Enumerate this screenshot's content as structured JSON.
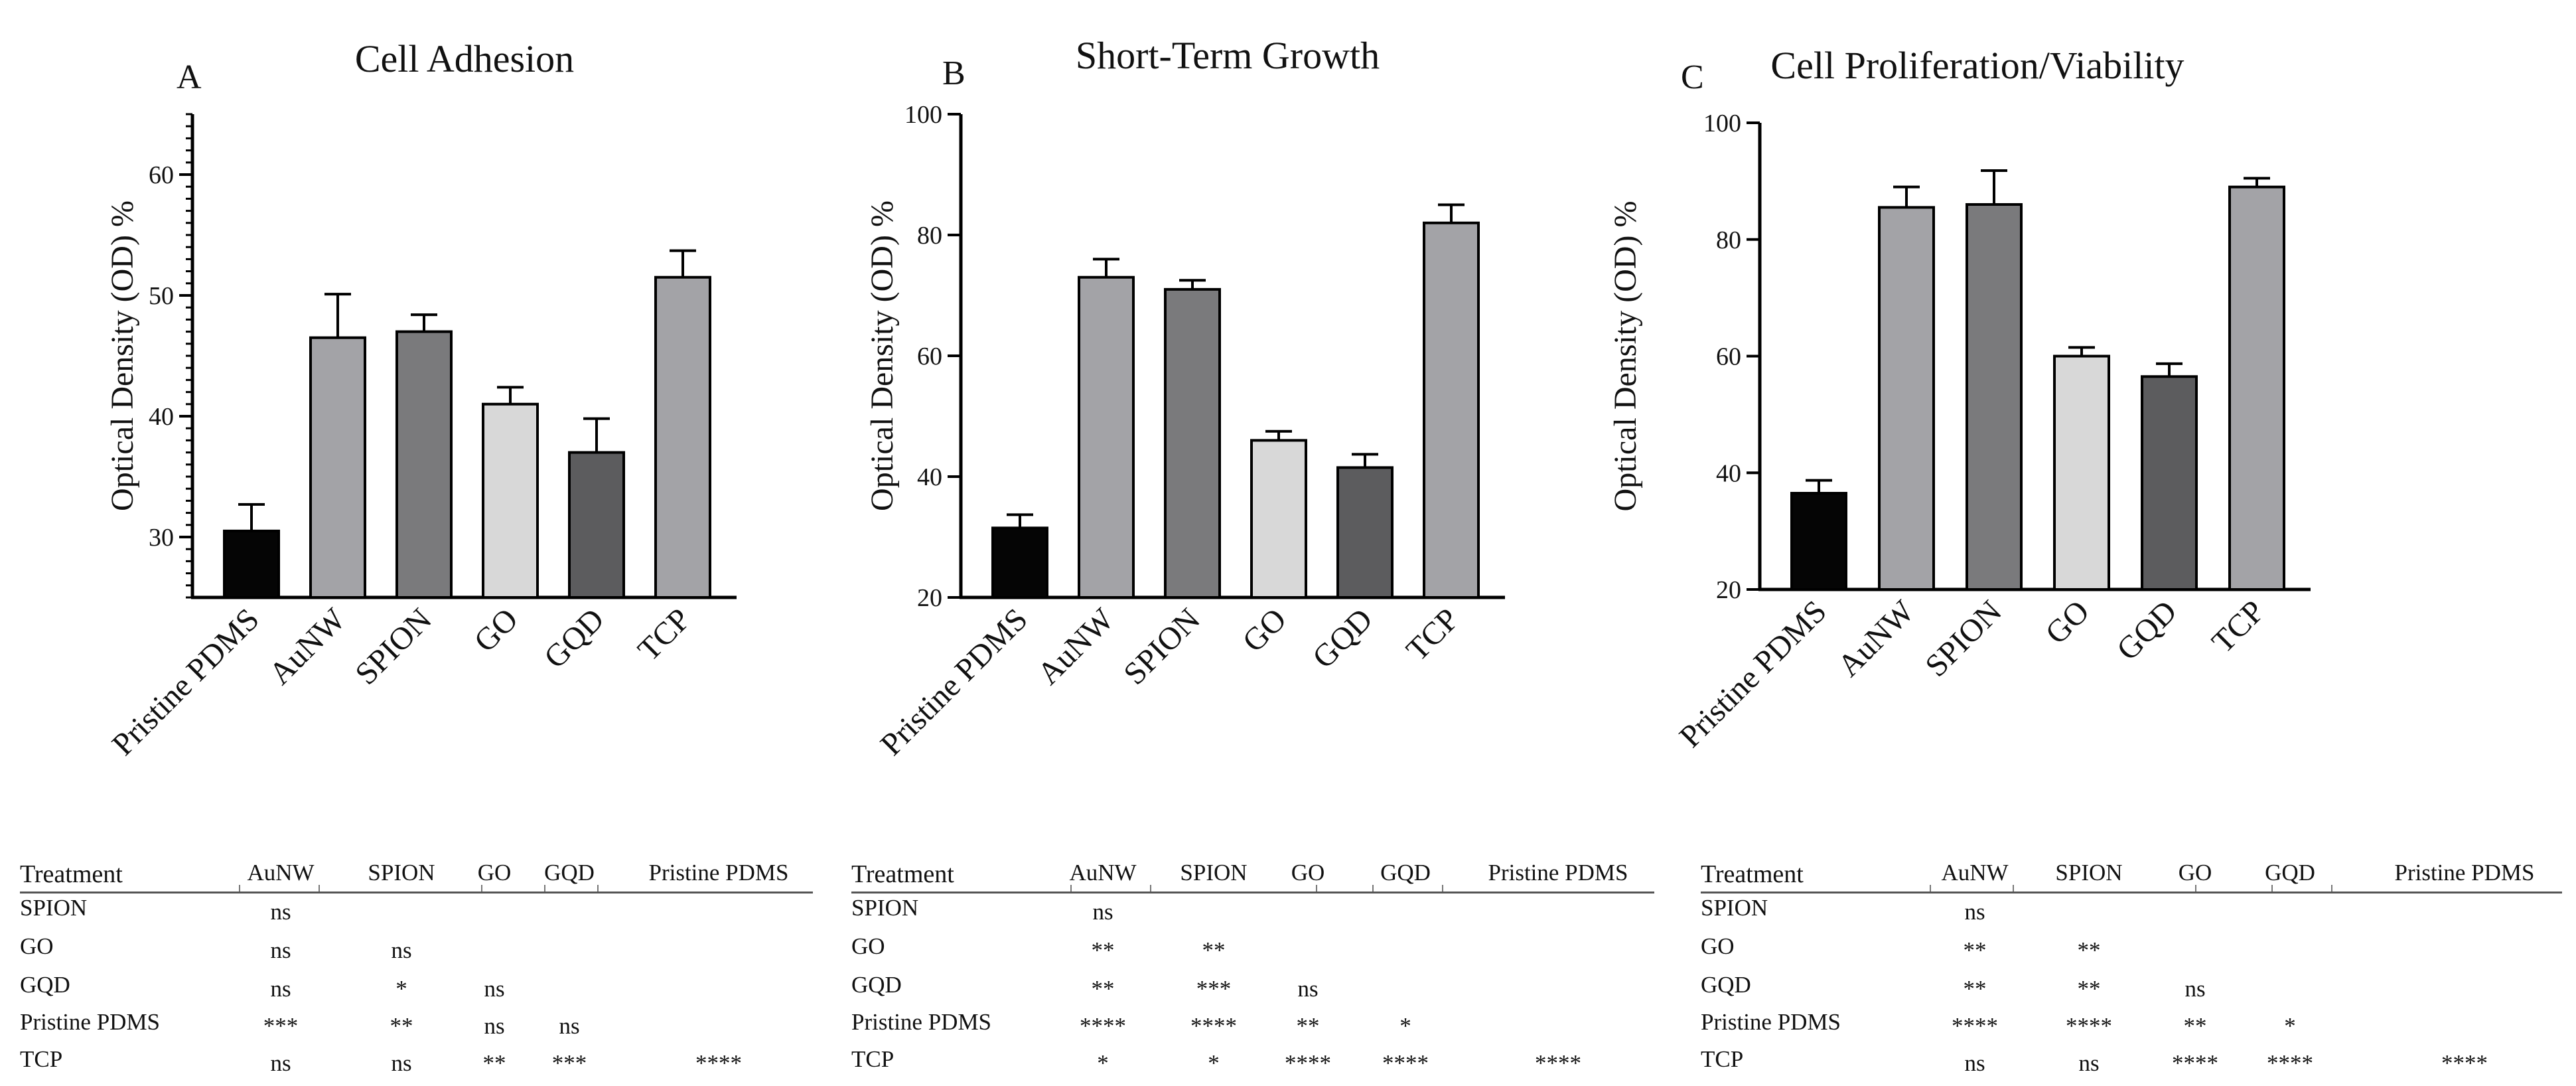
{
  "chart_data": [
    {
      "type": "bar",
      "panel_letter": "A",
      "title": "Cell Adhesion",
      "ylabel": "Optical Density (OD) %",
      "xlabel": "",
      "ylim": [
        25,
        65
      ],
      "yticks": [
        30,
        40,
        50,
        60
      ],
      "grid": false,
      "categories": [
        "Pristine PDMS",
        "AuNW",
        "SPION",
        "GO",
        "GQD",
        "TCP"
      ],
      "values": [
        30.5,
        46.5,
        47.0,
        41.0,
        37.0,
        51.5
      ],
      "errors": [
        2.2,
        3.6,
        1.4,
        1.4,
        2.8,
        2.2
      ],
      "colors": [
        "#050505",
        "#a3a3a7",
        "#7a7a7c",
        "#d8d8d8",
        "#5c5c5e",
        "#a3a3a7"
      ]
    },
    {
      "type": "bar",
      "panel_letter": "B",
      "title": "Short-Term Growth",
      "ylabel": "Optical Density (OD) %",
      "xlabel": "",
      "ylim": [
        20,
        100
      ],
      "yticks": [
        20,
        40,
        60,
        80,
        100
      ],
      "grid": false,
      "categories": [
        "Pristine PDMS",
        "AuNW",
        "SPION",
        "GO",
        "GQD",
        "TCP"
      ],
      "values": [
        31.5,
        73.0,
        71.0,
        46.0,
        41.5,
        82.0
      ],
      "errors": [
        2.2,
        3.0,
        1.5,
        1.5,
        2.2,
        3.0
      ],
      "colors": [
        "#050505",
        "#a3a3a7",
        "#7a7a7c",
        "#d8d8d8",
        "#5c5c5e",
        "#a3a3a7"
      ]
    },
    {
      "type": "bar",
      "panel_letter": "C",
      "title": "Cell Proliferation/Viability",
      "ylabel": "Optical Density (OD) %",
      "xlabel": "",
      "ylim": [
        20,
        100
      ],
      "yticks": [
        20,
        40,
        60,
        80,
        100
      ],
      "grid": false,
      "categories": [
        "Pristine PDMS",
        "AuNW",
        "SPION",
        "GO",
        "GQD",
        "TCP"
      ],
      "values": [
        36.5,
        85.5,
        86.0,
        60.0,
        56.5,
        89.0
      ],
      "errors": [
        2.2,
        3.5,
        5.8,
        1.5,
        2.2,
        1.5
      ],
      "colors": [
        "#050505",
        "#a3a3a7",
        "#7a7a7c",
        "#d8d8d8",
        "#5c5c5e",
        "#a3a3a7"
      ]
    }
  ],
  "tables": [
    {
      "header": [
        "Treatment",
        "AuNW",
        "SPION",
        "GO",
        "GQD",
        "Pristine PDMS"
      ],
      "rows": [
        [
          "SPION",
          "ns",
          "",
          "",
          "",
          ""
        ],
        [
          "GO",
          "ns",
          "ns",
          "",
          "",
          ""
        ],
        [
          "GQD",
          "ns",
          "*",
          "ns",
          "",
          ""
        ],
        [
          "Pristine PDMS",
          "***",
          "**",
          "ns",
          "ns",
          ""
        ],
        [
          "TCP",
          "ns",
          "ns",
          "**",
          "***",
          "****"
        ]
      ]
    },
    {
      "header": [
        "Treatment",
        "AuNW",
        "SPION",
        "GO",
        "GQD",
        "Pristine PDMS"
      ],
      "rows": [
        [
          "SPION",
          "ns",
          "",
          "",
          "",
          ""
        ],
        [
          "GO",
          "**",
          "**",
          "",
          "",
          ""
        ],
        [
          "GQD",
          "**",
          "***",
          "ns",
          "",
          ""
        ],
        [
          "Pristine PDMS",
          "****",
          "****",
          "**",
          "*",
          ""
        ],
        [
          "TCP",
          "*",
          "*",
          "****",
          "****",
          "****"
        ]
      ]
    },
    {
      "header": [
        "Treatment",
        "AuNW",
        "SPION",
        "GO",
        "GQD",
        "Pristine PDMS"
      ],
      "rows": [
        [
          "SPION",
          "ns",
          "",
          "",
          "",
          ""
        ],
        [
          "GO",
          "**",
          "**",
          "",
          "",
          ""
        ],
        [
          "GQD",
          "**",
          "**",
          "ns",
          "",
          ""
        ],
        [
          "Pristine PDMS",
          "****",
          "****",
          "**",
          "*",
          ""
        ],
        [
          "TCP",
          "ns",
          "ns",
          "****",
          "****",
          "****"
        ]
      ]
    }
  ]
}
